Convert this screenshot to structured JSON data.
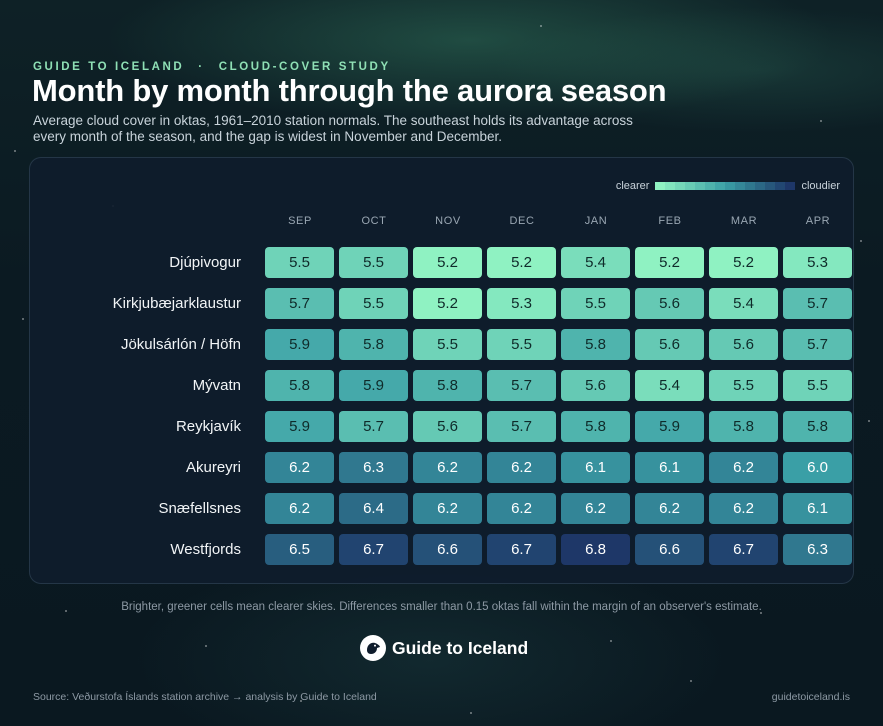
{
  "header": {
    "brand_eyebrow": "GUIDE TO ICELAND",
    "separator": "·",
    "section_eyebrow": "CLOUD-COVER STUDY",
    "title": "Month by month through the aurora season",
    "subtitle": "Average cloud cover in oktas, 1961–2010 station normals. The southeast holds its advantage across every month of the season, and the gap is widest in November and December."
  },
  "legend": {
    "low_label": "clearer",
    "high_label": "cloudier",
    "position": "top-right"
  },
  "colors": {
    "clear": "#8ff2c2",
    "mid": "#3a9fa6",
    "cloudy": "#1e3768"
  },
  "chart_data": {
    "type": "heatmap",
    "title": "Month by month through the aurora season",
    "columns": [
      "SEP",
      "OCT",
      "NOV",
      "DEC",
      "JAN",
      "FEB",
      "MAR",
      "APR"
    ],
    "rows": [
      "Djúpivogur",
      "Kirkjubæjarklaustur",
      "Jökulsárlón / Höfn",
      "Mývatn",
      "Reykjavík",
      "Akureyri",
      "Snæfellsnes",
      "Westfjords"
    ],
    "values": [
      [
        5.5,
        5.5,
        5.2,
        5.2,
        5.4,
        5.2,
        5.2,
        5.3
      ],
      [
        5.7,
        5.5,
        5.2,
        5.3,
        5.5,
        5.6,
        5.4,
        5.7
      ],
      [
        5.9,
        5.8,
        5.5,
        5.5,
        5.8,
        5.6,
        5.6,
        5.7
      ],
      [
        5.8,
        5.9,
        5.8,
        5.7,
        5.6,
        5.4,
        5.5,
        5.5
      ],
      [
        5.9,
        5.7,
        5.6,
        5.7,
        5.8,
        5.9,
        5.8,
        5.8
      ],
      [
        6.2,
        6.3,
        6.2,
        6.2,
        6.1,
        6.1,
        6.2,
        6.0
      ],
      [
        6.2,
        6.4,
        6.2,
        6.2,
        6.2,
        6.2,
        6.2,
        6.1
      ],
      [
        6.5,
        6.7,
        6.6,
        6.7,
        6.8,
        6.6,
        6.7,
        6.3
      ]
    ],
    "value_range": [
      5.2,
      6.8
    ]
  },
  "footer": {
    "footnote": "Brighter, greener cells mean clearer skies. Differences smaller than 0.15 oktas fall within the margin of an observer's estimate.",
    "brand_name": "Guide to Iceland",
    "brand_logo_icon": "puffin-logo-icon",
    "source": "Source: Veðurstofa Íslands station archive  → analysis by Guide to Iceland",
    "site": "guidetoiceland.is"
  }
}
